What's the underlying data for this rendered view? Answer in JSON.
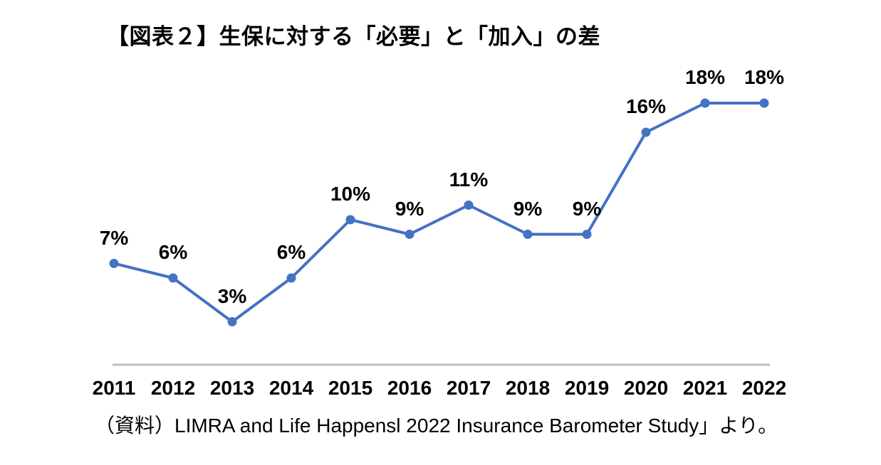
{
  "chart_data": {
    "type": "line",
    "title": "【図表２】生保に対する「必要」と「加入」の差",
    "categories": [
      "2011",
      "2012",
      "2013",
      "2014",
      "2015",
      "2016",
      "2017",
      "2018",
      "2019",
      "2020",
      "2021",
      "2022"
    ],
    "values": [
      7,
      6,
      3,
      6,
      10,
      9,
      11,
      9,
      9,
      16,
      18,
      18
    ],
    "data_labels": [
      "7%",
      "6%",
      "3%",
      "6%",
      "10%",
      "9%",
      "11%",
      "9%",
      "9%",
      "16%",
      "18%",
      "18%"
    ],
    "xlabel": "",
    "ylabel": "",
    "ylim": [
      0,
      24
    ],
    "grid": false,
    "legend": "none",
    "line_color": "#4472C4",
    "marker_color": "#4472C4",
    "axis_color": "#BFBFBF",
    "label_color": "#000000",
    "source": "（資料）LIMRA and Life Happensl 2022 Insurance Barometer Study」より。"
  }
}
